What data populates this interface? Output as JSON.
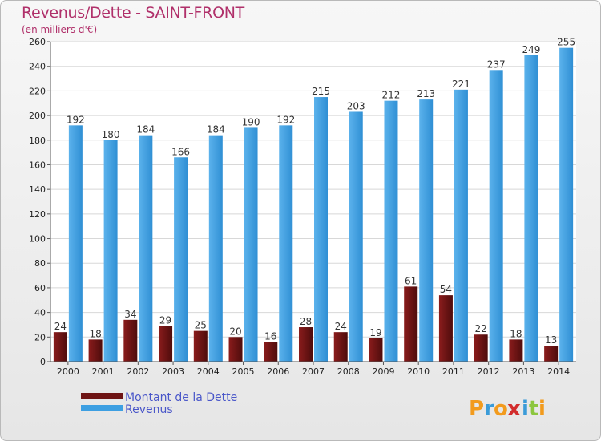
{
  "header": {
    "title": "Revenus/Dette - SAINT-FRONT",
    "subtitle": "(en milliers d'€)"
  },
  "legend": {
    "dette_label": "Montant de la Dette",
    "revenus_label": "Revenus"
  },
  "logo": {
    "letters": [
      "P",
      "r",
      "o",
      "x",
      "i",
      "t",
      "i"
    ],
    "colors": [
      "#f29b1d",
      "#3a9bd8",
      "#f29b1d",
      "#d22c2c",
      "#3a9bd8",
      "#8cc63e",
      "#f29b1d"
    ]
  },
  "colors": {
    "dette": "#6e1414",
    "revenus": "#3d9fe2"
  },
  "chart_data": {
    "type": "bar",
    "title": "Revenus/Dette - SAINT-FRONT",
    "subtitle": "(en milliers d'€)",
    "categories": [
      "2000",
      "2001",
      "2002",
      "2003",
      "2004",
      "2005",
      "2006",
      "2007",
      "2008",
      "2009",
      "2010",
      "2011",
      "2012",
      "2013",
      "2014"
    ],
    "series": [
      {
        "name": "Montant de la Dette",
        "values": [
          24,
          18,
          34,
          29,
          25,
          20,
          16,
          28,
          24,
          19,
          61,
          54,
          22,
          18,
          13
        ]
      },
      {
        "name": "Revenus",
        "values": [
          192,
          180,
          184,
          166,
          184,
          190,
          192,
          215,
          203,
          212,
          213,
          221,
          237,
          249,
          255
        ]
      }
    ],
    "ylim": [
      0,
      260
    ],
    "yticks": [
      0,
      20,
      40,
      60,
      80,
      100,
      120,
      140,
      160,
      180,
      200,
      220,
      240,
      260
    ],
    "grid": true,
    "legend_position": "bottom-left"
  }
}
